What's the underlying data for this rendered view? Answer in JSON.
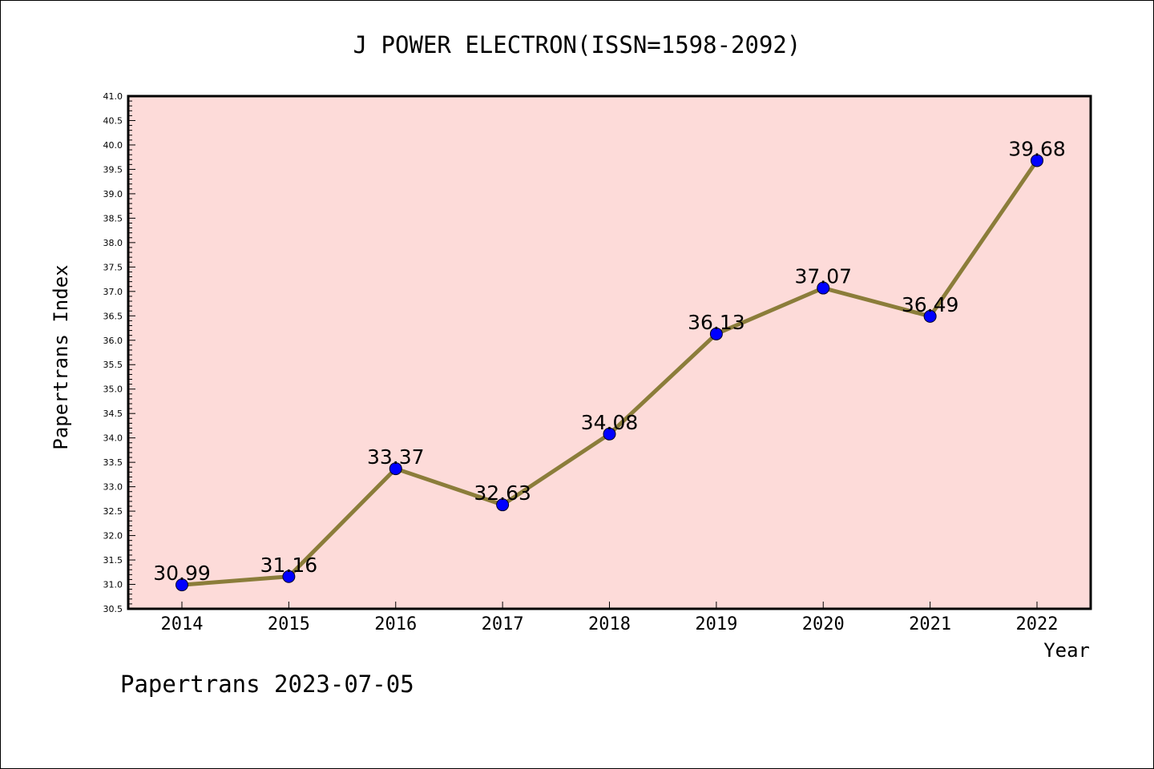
{
  "chart_data": {
    "type": "line",
    "title": "J POWER ELECTRON(ISSN=1598-2092)",
    "xlabel": "Year",
    "ylabel": "Papertrans Index",
    "categories": [
      "2014",
      "2015",
      "2016",
      "2017",
      "2018",
      "2019",
      "2020",
      "2021",
      "2022"
    ],
    "series": [
      {
        "values": [
          30.99,
          31.16,
          33.37,
          32.63,
          34.08,
          36.13,
          37.07,
          36.49,
          39.68
        ],
        "labels": [
          "30.99",
          "31.16",
          "33.37",
          "32.63",
          "34.08",
          "36.13",
          "37.07",
          "36.49",
          "39.68"
        ]
      }
    ],
    "ylim": [
      30.5,
      41.0
    ],
    "yticks": [
      "30.5",
      "31.0",
      "31.5",
      "32.0",
      "32.5",
      "33.0",
      "33.5",
      "34.0",
      "34.5",
      "35.0",
      "35.5",
      "36.0",
      "36.5",
      "37.0",
      "37.5",
      "38.0",
      "38.5",
      "39.0",
      "39.5",
      "40.0",
      "40.5",
      "41.0"
    ],
    "grid": false,
    "colors": {
      "plot_background": "#fddbd9",
      "line": "#8b7d3a",
      "marker": "#0000ff"
    }
  },
  "footer": "Papertrans 2023-07-05"
}
